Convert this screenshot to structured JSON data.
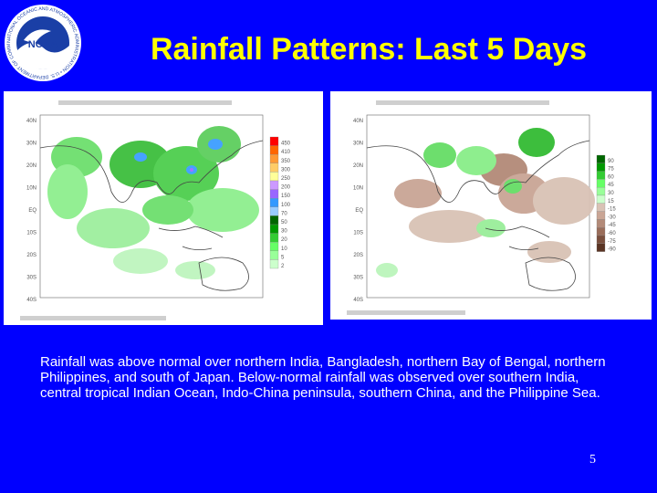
{
  "slide": {
    "title": "Rainfall Patterns: Last 5 Days",
    "body": "Rainfall was above normal over northern India, Bangladesh, northern Bay of Bengal, northern Philippines, and south of Japan. Below-normal rainfall was observed over southern India, central tropical Indian Ocean, Indo-China peninsula, southern China, and the Philippine Sea.",
    "page_number": "5"
  },
  "logo": {
    "center_text": "NOAA",
    "ring_text": "NATIONAL OCEANIC AND ATMOSPHERIC ADMINISTRATION • U.S. DEPARTMENT OF COMMERCE"
  },
  "left_map": {
    "lat_labels": [
      "40N",
      "30N",
      "20N",
      "10N",
      "EQ",
      "10S",
      "20S",
      "30S",
      "40S"
    ],
    "colorbar_labels": [
      "450",
      "410",
      "350",
      "300",
      "250",
      "200",
      "150",
      "100",
      "70",
      "50",
      "30",
      "20",
      "10",
      "5",
      "2"
    ],
    "colors": [
      "#ff0000",
      "#ff6600",
      "#ff9933",
      "#ffcc66",
      "#ffff99",
      "#cc99ff",
      "#9966ff",
      "#3399ff",
      "#99ccff",
      "#006600",
      "#009900",
      "#33cc33",
      "#66ff66",
      "#99ff99",
      "#ccffcc"
    ]
  },
  "right_map": {
    "lat_labels": [
      "40N",
      "30N",
      "20N",
      "10N",
      "EQ",
      "10S",
      "20S",
      "30S",
      "40S"
    ],
    "colorbar_labels": [
      "90",
      "75",
      "60",
      "45",
      "30",
      "15",
      "-15",
      "-30",
      "-45",
      "-60",
      "-75",
      "-90"
    ],
    "colors": [
      "#006600",
      "#009900",
      "#33cc33",
      "#66ff66",
      "#99ff99",
      "#ccffcc",
      "#d9c2b5",
      "#c9a595",
      "#b38a78",
      "#9a6d5a",
      "#7a4f3d",
      "#5a3423"
    ]
  }
}
